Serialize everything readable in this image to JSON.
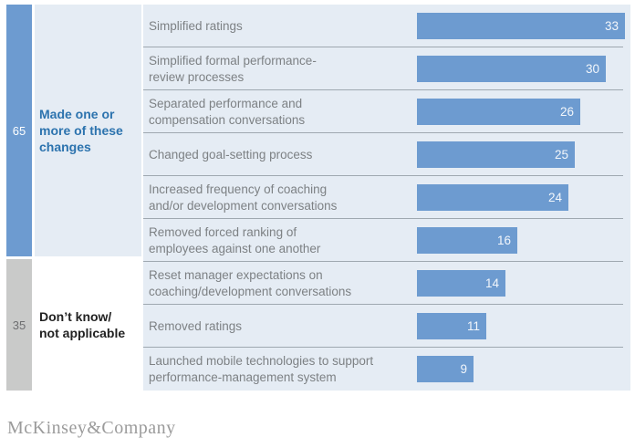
{
  "colors": {
    "bar": "#6d9bd0",
    "panel": "#e5ecf4",
    "strip-gray": "#c9cac9",
    "group1-text": "#2c73ae",
    "group2-text": "#222222",
    "label-text": "#7d8184",
    "value-text": "#f2f6fb",
    "separator": "#9fa8b0",
    "footer-text": "#9b9b9b"
  },
  "chart_data": {
    "type": "bar",
    "orientation": "horizontal",
    "title": "",
    "categories": [
      "Simplified ratings",
      "Simplified formal performance-review processes",
      "Separated performance and compensation conversations",
      "Changed goal-setting process",
      "Increased frequency of coaching and/or development conversations",
      "Removed forced ranking of employees against one another",
      "Reset manager expectations on coaching/development conversations",
      "Removed ratings",
      "Launched mobile technologies to support performance-management system"
    ],
    "values": [
      33,
      30,
      26,
      25,
      24,
      16,
      14,
      11,
      9
    ],
    "xlim": [
      0,
      35
    ],
    "grid": false,
    "legend": false,
    "value_labels": "inside-right",
    "groups": [
      {
        "value": 65,
        "label": "Made one or more of these changes",
        "row_indexes": [
          0,
          1,
          2,
          3,
          4,
          5
        ]
      },
      {
        "value": 35,
        "label": "Don’t know/not applicable",
        "row_indexes": [
          6,
          7,
          8
        ]
      }
    ]
  },
  "display": {
    "groups": [
      {
        "value": "65",
        "label": "Made one or\nmore of these\nchanges"
      },
      {
        "value": "35",
        "label": "Don’t know/\nnot applicable"
      }
    ],
    "rows": [
      {
        "label": "Simplified ratings",
        "value": "33"
      },
      {
        "label": "Simplified formal performance-\nreview processes",
        "value": "30"
      },
      {
        "label": "Separated performance and\ncompensation conversations",
        "value": "26"
      },
      {
        "label": "Changed goal-setting process",
        "value": "25"
      },
      {
        "label": "Increased frequency of coaching\nand/or development conversations",
        "value": "24"
      },
      {
        "label": "Removed forced ranking of\nemployees against one another",
        "value": "16"
      },
      {
        "label": "Reset manager expectations on\ncoaching/development conversations",
        "value": "14"
      },
      {
        "label": "Removed ratings",
        "value": "11"
      },
      {
        "label": "Launched mobile technologies to support\nperformance-management system",
        "value": "9"
      }
    ]
  },
  "footer": {
    "brand": "McKinsey&Company"
  }
}
